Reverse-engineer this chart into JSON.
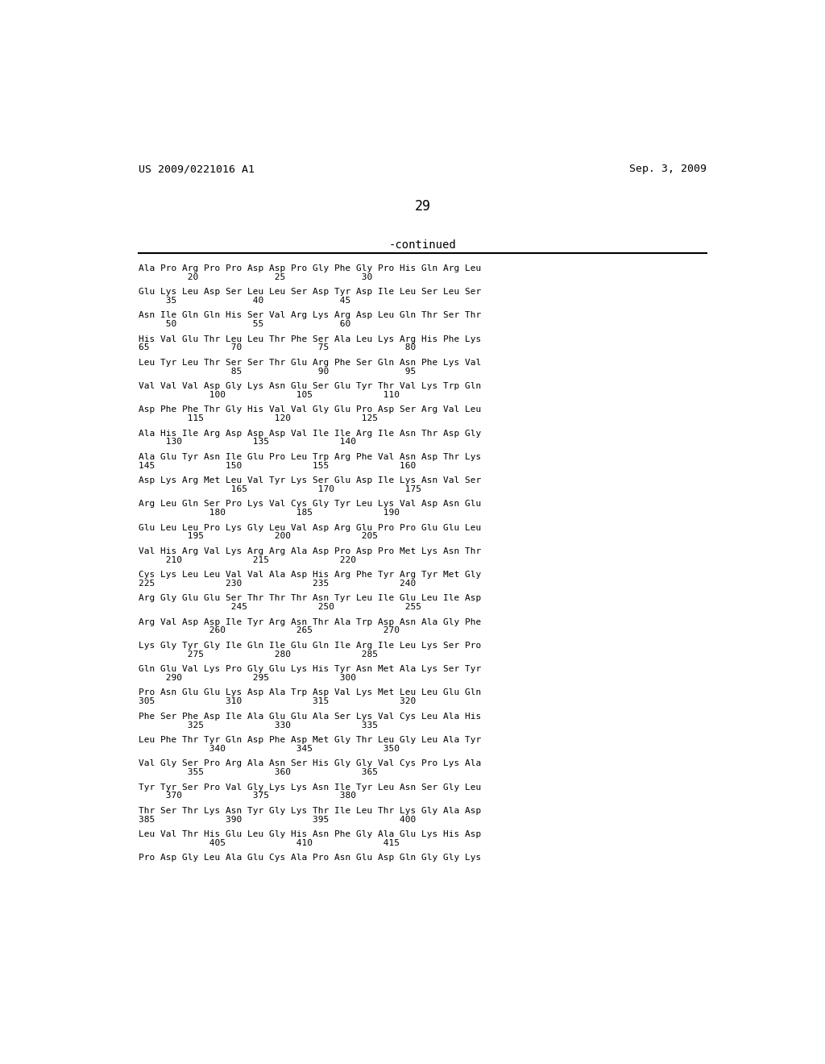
{
  "header_left": "US 2009/0221016 A1",
  "header_right": "Sep. 3, 2009",
  "page_number": "29",
  "continued_label": "-continued",
  "background_color": "#ffffff",
  "text_color": "#000000",
  "seq_lines": [
    [
      "Ala Pro Arg Pro Pro Asp Asp Pro Gly Phe Gly Pro His Gln Arg Leu",
      "         20              25              30"
    ],
    [
      "Glu Lys Leu Asp Ser Leu Leu Ser Asp Tyr Asp Ile Leu Ser Leu Ser",
      "     35              40              45"
    ],
    [
      "Asn Ile Gln Gln His Ser Val Arg Lys Arg Asp Leu Gln Thr Ser Thr",
      "     50              55              60"
    ],
    [
      "His Val Glu Thr Leu Leu Thr Phe Ser Ala Leu Lys Arg His Phe Lys",
      "65               70              75              80"
    ],
    [
      "Leu Tyr Leu Thr Ser Ser Thr Glu Arg Phe Ser Gln Asn Phe Lys Val",
      "                 85              90              95"
    ],
    [
      "Val Val Val Asp Gly Lys Asn Glu Ser Glu Tyr Thr Val Lys Trp Gln",
      "             100             105             110"
    ],
    [
      "Asp Phe Phe Thr Gly His Val Val Gly Glu Pro Asp Ser Arg Val Leu",
      "         115             120             125"
    ],
    [
      "Ala His Ile Arg Asp Asp Asp Val Ile Ile Arg Ile Asn Thr Asp Gly",
      "     130             135             140"
    ],
    [
      "Ala Glu Tyr Asn Ile Glu Pro Leu Trp Arg Phe Val Asn Asp Thr Lys",
      "145             150             155             160"
    ],
    [
      "Asp Lys Arg Met Leu Val Tyr Lys Ser Glu Asp Ile Lys Asn Val Ser",
      "                 165             170             175"
    ],
    [
      "Arg Leu Gln Ser Pro Lys Val Cys Gly Tyr Leu Lys Val Asp Asn Glu",
      "             180             185             190"
    ],
    [
      "Glu Leu Leu Pro Lys Gly Leu Val Asp Arg Glu Pro Pro Glu Glu Leu",
      "         195             200             205"
    ],
    [
      "Val His Arg Val Lys Arg Arg Ala Asp Pro Asp Pro Met Lys Asn Thr",
      "     210             215             220"
    ],
    [
      "Cys Lys Leu Leu Val Val Ala Asp His Arg Phe Tyr Arg Tyr Met Gly",
      "225             230             235             240"
    ],
    [
      "Arg Gly Glu Glu Ser Thr Thr Thr Asn Tyr Leu Ile Glu Leu Ile Asp",
      "                 245             250             255"
    ],
    [
      "Arg Val Asp Asp Ile Tyr Arg Asn Thr Ala Trp Asp Asn Ala Gly Phe",
      "             260             265             270"
    ],
    [
      "Lys Gly Tyr Gly Ile Gln Ile Glu Gln Ile Arg Ile Leu Lys Ser Pro",
      "         275             280             285"
    ],
    [
      "Gln Glu Val Lys Pro Gly Glu Lys His Tyr Asn Met Ala Lys Ser Tyr",
      "     290             295             300"
    ],
    [
      "Pro Asn Glu Glu Lys Asp Ala Trp Asp Val Lys Met Leu Leu Glu Gln",
      "305             310             315             320"
    ],
    [
      "Phe Ser Phe Asp Ile Ala Glu Glu Ala Ser Lys Val Cys Leu Ala His",
      "         325             330             335"
    ],
    [
      "Leu Phe Thr Tyr Gln Asp Phe Asp Met Gly Thr Leu Gly Leu Ala Tyr",
      "             340             345             350"
    ],
    [
      "Val Gly Ser Pro Arg Ala Asn Ser His Gly Gly Val Cys Pro Lys Ala",
      "         355             360             365"
    ],
    [
      "Tyr Tyr Ser Pro Val Gly Lys Lys Asn Ile Tyr Leu Asn Ser Gly Leu",
      "     370             375             380"
    ],
    [
      "Thr Ser Thr Lys Asn Tyr Gly Lys Thr Ile Leu Thr Lys Gly Ala Asp",
      "385             390             395             400"
    ],
    [
      "Leu Val Thr His Glu Leu Gly His Asn Phe Gly Ala Glu Lys His Asp",
      "             405             410             415"
    ],
    [
      "Pro Asp Gly Leu Ala Glu Cys Ala Pro Asn Glu Asp Gln Gly Gly Lys",
      ""
    ]
  ]
}
